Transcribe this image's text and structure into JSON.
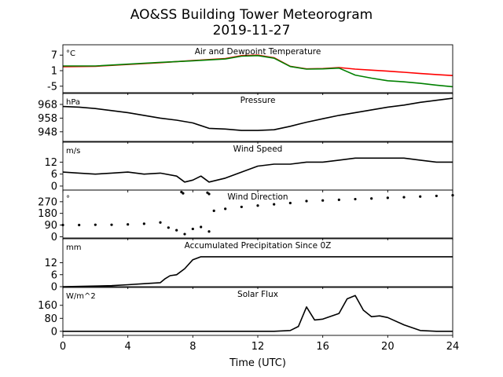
{
  "figure": {
    "title_line1": "AO&SS Building Tower Meteorogram",
    "title_line2": "2019-11-27",
    "xlabel": "Time (UTC)",
    "xlim": [
      0,
      24
    ],
    "xticks": [
      0,
      4,
      8,
      12,
      16,
      20,
      24
    ]
  },
  "chart_data": [
    {
      "type": "line",
      "title": "Air and Dewpoint Temperature",
      "unit": "°C",
      "ylim": [
        -7.5,
        11
      ],
      "yticks": [
        7,
        1,
        -5
      ],
      "series": [
        {
          "color": "#ff0000",
          "x": [
            0,
            2,
            4,
            6,
            8,
            10,
            11,
            12,
            13,
            14,
            15,
            16,
            17,
            18,
            19,
            20,
            21,
            22,
            23,
            24
          ],
          "y": [
            2.5,
            2.7,
            3.4,
            4.1,
            4.9,
            5.7,
            6.8,
            7.0,
            6.0,
            2.7,
            1.7,
            1.8,
            2.2,
            1.6,
            1.2,
            0.8,
            0.4,
            -0.1,
            -0.5,
            -0.9
          ]
        },
        {
          "color": "#008000",
          "x": [
            0,
            2,
            4,
            6,
            8,
            10,
            11,
            12,
            13,
            14,
            15,
            16,
            17,
            18,
            19,
            20,
            21,
            22,
            23,
            24
          ],
          "y": [
            2.8,
            2.8,
            3.5,
            4.2,
            4.8,
            5.5,
            6.6,
            6.8,
            5.8,
            2.6,
            1.6,
            1.7,
            2.0,
            -0.7,
            -1.9,
            -2.9,
            -3.3,
            -3.9,
            -4.6,
            -5.2
          ]
        }
      ]
    },
    {
      "type": "line",
      "title": "Pressure",
      "unit": "hPa",
      "ylim": [
        941,
        976
      ],
      "yticks": [
        968,
        958,
        948
      ],
      "series": [
        {
          "color": "#000000",
          "x": [
            0,
            1,
            2,
            3,
            4,
            5,
            6,
            7,
            8,
            9,
            10,
            11,
            12,
            13,
            14,
            15,
            16,
            17,
            18,
            19,
            20,
            21,
            22,
            23,
            24
          ],
          "y": [
            966.5,
            966,
            965,
            963.5,
            962,
            960,
            958,
            956.5,
            954.5,
            950.5,
            950,
            949,
            949,
            949.5,
            952,
            955,
            957.5,
            960,
            962,
            964,
            966,
            967.5,
            969.5,
            971,
            972.5
          ]
        }
      ]
    },
    {
      "type": "line",
      "title": "Wind Speed",
      "unit": "m/s",
      "ylim": [
        -2,
        22
      ],
      "yticks": [
        12,
        6,
        0
      ],
      "series": [
        {
          "color": "#000000",
          "x": [
            0,
            1,
            2,
            3,
            4,
            5,
            6,
            7,
            7.5,
            8,
            8.5,
            9,
            9.5,
            10,
            11,
            12,
            13,
            14,
            15,
            16,
            17,
            18,
            19,
            20,
            21,
            22,
            23,
            24
          ],
          "y": [
            7,
            6.5,
            6,
            6.5,
            7,
            6,
            6.5,
            5,
            2,
            3,
            5,
            2,
            3,
            4,
            7,
            10,
            11,
            11,
            12,
            12,
            13,
            14,
            14,
            14,
            14,
            13,
            12,
            12
          ]
        }
      ]
    },
    {
      "type": "scatter",
      "title": "Wind Direction",
      "unit": "°",
      "ylim": [
        -10,
        360
      ],
      "yticks": [
        270,
        180,
        90,
        0
      ],
      "series": [
        {
          "color": "#000000",
          "x": [
            0,
            1,
            2,
            3,
            4,
            5,
            6,
            6.5,
            7,
            7.5,
            8,
            8.5,
            9,
            9.3,
            10,
            11,
            12,
            13,
            14,
            15,
            16,
            17,
            18,
            19,
            20,
            21,
            22,
            23,
            24
          ],
          "y": [
            90,
            90,
            92,
            92,
            95,
            100,
            110,
            70,
            50,
            20,
            60,
            75,
            40,
            200,
            215,
            230,
            240,
            250,
            260,
            275,
            280,
            285,
            290,
            295,
            300,
            305,
            310,
            315,
            320
          ]
        },
        {
          "color": "#000000",
          "x": [
            7.3,
            7.4,
            8.9,
            9.0
          ],
          "y": [
            345,
            335,
            340,
            330
          ]
        }
      ]
    },
    {
      "type": "line",
      "title": "Accumulated Precipitation Since 0Z",
      "unit": "mm",
      "ylim": [
        0,
        24
      ],
      "yticks": [
        12,
        6,
        0
      ],
      "series": [
        {
          "color": "#000000",
          "x": [
            0,
            3,
            4,
            5,
            6,
            6.3,
            6.6,
            7,
            7.5,
            8,
            8.5,
            24
          ],
          "y": [
            0,
            0.5,
            1,
            1.5,
            2,
            4,
            5.5,
            6,
            9,
            13.5,
            15,
            15
          ]
        }
      ]
    },
    {
      "type": "line",
      "title": "Solar Flux",
      "unit": "W/m^2",
      "ylim": [
        -25,
        270
      ],
      "yticks": [
        160,
        80,
        0
      ],
      "series": [
        {
          "color": "#000000",
          "x": [
            0,
            13,
            14,
            14.5,
            15,
            15.5,
            16,
            17,
            17.5,
            18,
            18.5,
            19,
            19.5,
            20,
            21,
            22,
            23,
            24
          ],
          "y": [
            0,
            0,
            5,
            30,
            150,
            70,
            75,
            110,
            200,
            220,
            130,
            90,
            95,
            85,
            40,
            5,
            0,
            0
          ]
        }
      ]
    }
  ]
}
